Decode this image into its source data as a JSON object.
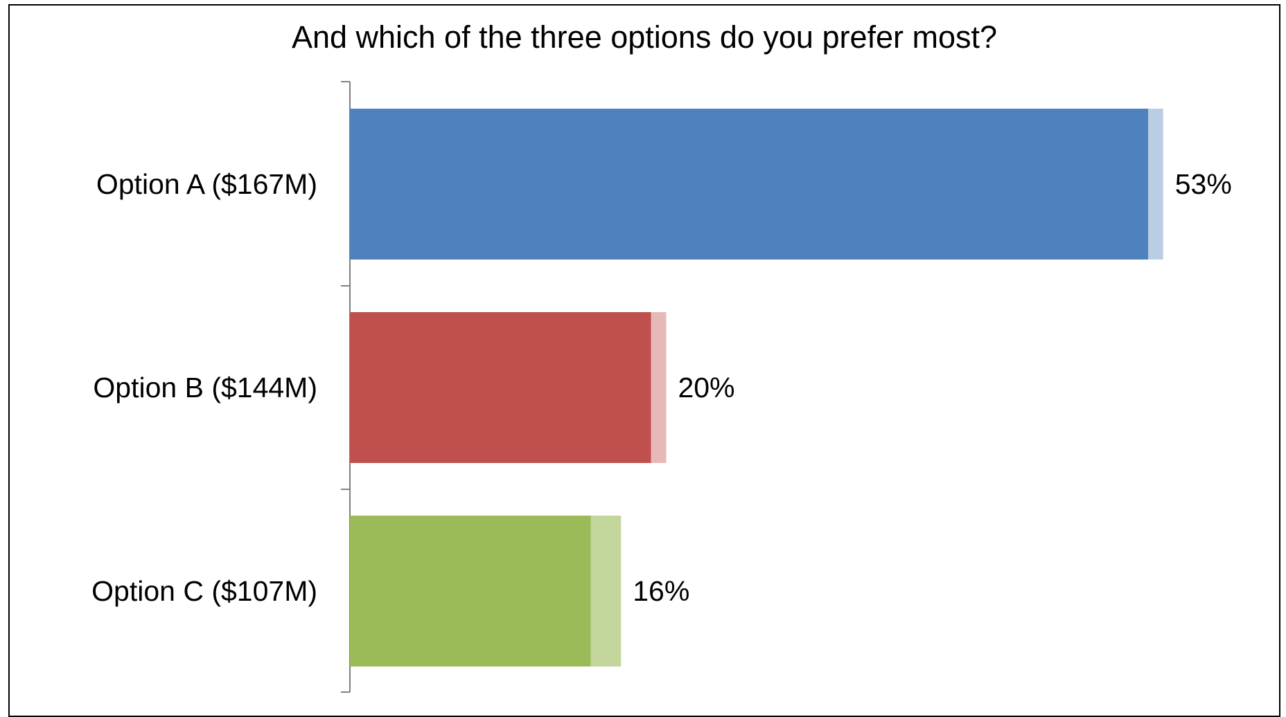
{
  "chart_data": {
    "type": "bar",
    "orientation": "horizontal",
    "title": "And which of the three options do you prefer most?",
    "categories": [
      "Option A ($167M)",
      "Option B ($144M)",
      "Option C ($107M)"
    ],
    "values": [
      53,
      20,
      16
    ],
    "value_labels": [
      "53%",
      "20%",
      "16%"
    ],
    "unit": "%",
    "colors": [
      "#4F81BD",
      "#C0504D",
      "#9BBB59"
    ],
    "light_colors": [
      "#B9CDE5",
      "#E6B9B8",
      "#C3D69B"
    ],
    "light_extension": [
      1,
      1,
      2
    ],
    "xlim": [
      0,
      55
    ],
    "grid": false,
    "legend": "none"
  }
}
